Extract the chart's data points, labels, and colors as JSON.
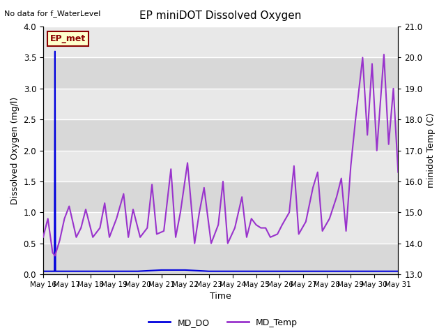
{
  "title": "EP miniDOT Dissolved Oxygen",
  "top_left_text": "No data for f_WaterLevel",
  "legend_box_label": "EP_met",
  "xlabel": "Time",
  "ylabel_left": "Dissolved Oxygen (mg/l)",
  "ylabel_right": "minidot Temp (C)",
  "ylim_left": [
    0.0,
    4.0
  ],
  "ylim_right": [
    13.0,
    21.0
  ],
  "bg_color": "#e8e8e8",
  "line_do_color": "#0000dd",
  "line_temp_color": "#9933cc",
  "legend_box_bg": "#ffffcc",
  "legend_box_border": "#8b0000",
  "grid_color": "#ffffff",
  "xtick_labels": [
    "May 16",
    "May 17",
    "May 18",
    "May 19",
    "May 20",
    "May 21",
    "May 22",
    "May 23",
    "May 24",
    "May 25",
    "May 26",
    "May 27",
    "May 28",
    "May 29",
    "May 30",
    "May 31"
  ],
  "md_do_x": [
    0.0,
    0.48,
    0.5,
    0.52,
    1.0,
    2.0,
    3.0,
    4.0,
    5.0,
    6.0,
    7.0,
    8.0,
    9.0,
    10.0,
    11.0,
    12.0,
    13.0,
    14.0,
    15.0
  ],
  "md_do_y": [
    0.05,
    0.05,
    3.6,
    0.05,
    0.05,
    0.05,
    0.05,
    0.05,
    0.07,
    0.07,
    0.05,
    0.05,
    0.05,
    0.05,
    0.05,
    0.05,
    0.05,
    0.05,
    0.05
  ],
  "md_temp_x": [
    0.0,
    0.2,
    0.4,
    0.5,
    0.7,
    0.9,
    1.1,
    1.4,
    1.6,
    1.8,
    2.1,
    2.4,
    2.6,
    2.8,
    3.1,
    3.4,
    3.6,
    3.8,
    4.1,
    4.4,
    4.6,
    4.8,
    5.1,
    5.4,
    5.6,
    5.8,
    6.1,
    6.4,
    6.6,
    6.8,
    7.1,
    7.4,
    7.6,
    7.8,
    8.1,
    8.4,
    8.6,
    8.8,
    9.0,
    9.2,
    9.4,
    9.6,
    9.9,
    10.1,
    10.4,
    10.6,
    10.8,
    11.1,
    11.4,
    11.6,
    11.8,
    12.1,
    12.4,
    12.6,
    12.8,
    13.0,
    13.2,
    13.5,
    13.7,
    13.9,
    14.1,
    14.4,
    14.6,
    14.8,
    15.0
  ],
  "md_temp_y": [
    14.2,
    14.8,
    13.7,
    13.6,
    14.1,
    14.8,
    15.2,
    14.2,
    14.5,
    15.1,
    14.2,
    14.5,
    15.3,
    14.2,
    14.8,
    15.6,
    14.2,
    15.1,
    14.2,
    14.5,
    15.9,
    14.3,
    14.4,
    16.4,
    14.2,
    15.0,
    16.6,
    14.0,
    15.0,
    15.8,
    14.0,
    14.6,
    16.0,
    14.0,
    14.5,
    15.5,
    14.2,
    14.8,
    14.6,
    14.5,
    14.5,
    14.2,
    14.3,
    14.6,
    15.0,
    16.5,
    14.3,
    14.7,
    15.8,
    16.3,
    14.4,
    14.8,
    15.5,
    16.1,
    14.4,
    16.5,
    18.0,
    20.0,
    17.5,
    19.8,
    17.0,
    20.1,
    17.2,
    19.0,
    16.3
  ]
}
